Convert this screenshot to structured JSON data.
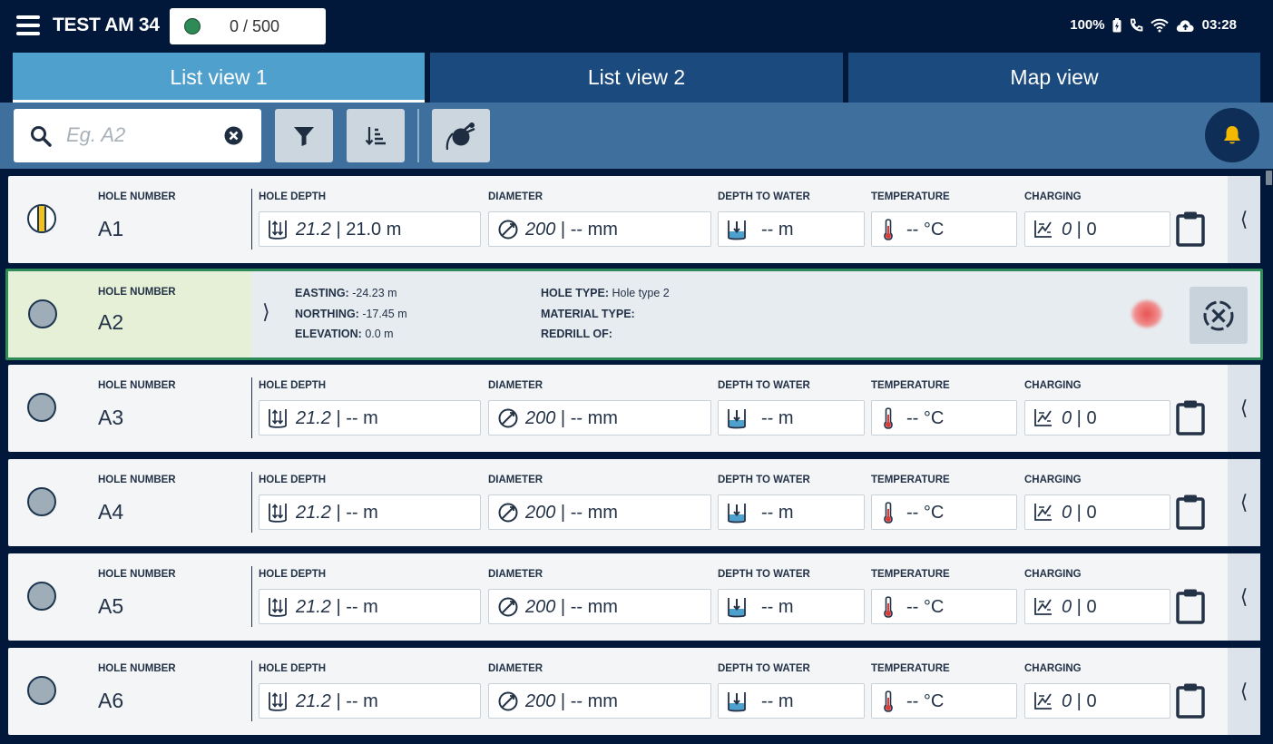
{
  "header": {
    "title": "TEST AM 34",
    "counter": "0 / 500",
    "battery": "100%",
    "time": "03:28"
  },
  "tabs": [
    {
      "label": "List view 1",
      "active": true
    },
    {
      "label": "List view 2",
      "active": false
    },
    {
      "label": "Map view",
      "active": false
    }
  ],
  "toolbar": {
    "search_placeholder": "Eg. A2",
    "icons": [
      "search-icon",
      "clear-icon",
      "filter-icon",
      "sort-icon",
      "drill-icon",
      "bell-icon"
    ]
  },
  "labels": {
    "hole_number": "HOLE NUMBER",
    "hole_depth": "HOLE DEPTH",
    "diameter": "DIAMETER",
    "depth_to_water": "DEPTH TO WATER",
    "temperature": "TEMPERATURE",
    "charging": "CHARGING",
    "easting": "EASTING:",
    "northing": "NORTHING:",
    "elevation": "ELEVATION:",
    "hole_type": "HOLE TYPE:",
    "material_type": "MATERIAL TYPE:",
    "redrill_of": "REDRILL OF:"
  },
  "rows": [
    {
      "hole": "A1",
      "depth_planned": "21.2",
      "depth_actual": "21.0 m",
      "diameter_planned": "200",
      "diameter_actual": "-- mm",
      "water": "-- m",
      "temp": "-- °C",
      "charging_a": "0",
      "charging_b": "0"
    },
    {
      "hole": "A2",
      "expanded": true,
      "easting": "-24.23 m",
      "northing": "-17.45 m",
      "elevation": "0.0 m",
      "hole_type": "Hole type 2",
      "material_type": "",
      "redrill_of": ""
    },
    {
      "hole": "A3",
      "depth_planned": "21.2",
      "depth_actual": "-- m",
      "diameter_planned": "200",
      "diameter_actual": "-- mm",
      "water": "-- m",
      "temp": "-- °C",
      "charging_a": "0",
      "charging_b": "0"
    },
    {
      "hole": "A4",
      "depth_planned": "21.2",
      "depth_actual": "-- m",
      "diameter_planned": "200",
      "diameter_actual": "-- mm",
      "water": "-- m",
      "temp": "-- °C",
      "charging_a": "0",
      "charging_b": "0"
    },
    {
      "hole": "A5",
      "depth_planned": "21.2",
      "depth_actual": "-- m",
      "diameter_planned": "200",
      "diameter_actual": "-- mm",
      "water": "-- m",
      "temp": "-- °C",
      "charging_a": "0",
      "charging_b": "0"
    },
    {
      "hole": "A6",
      "depth_planned": "21.2",
      "depth_actual": "-- m",
      "diameter_planned": "200",
      "diameter_actual": "-- mm",
      "water": "-- m",
      "temp": "-- °C",
      "charging_a": "0",
      "charging_b": "0"
    }
  ],
  "colors": {
    "navy": "#02183a",
    "tab_active": "#4fa0cc",
    "tab_inactive": "#1b4a7f",
    "toolbar": "#3f6f9d",
    "selected_border": "#2e8a57",
    "bell": "#f5b800"
  }
}
